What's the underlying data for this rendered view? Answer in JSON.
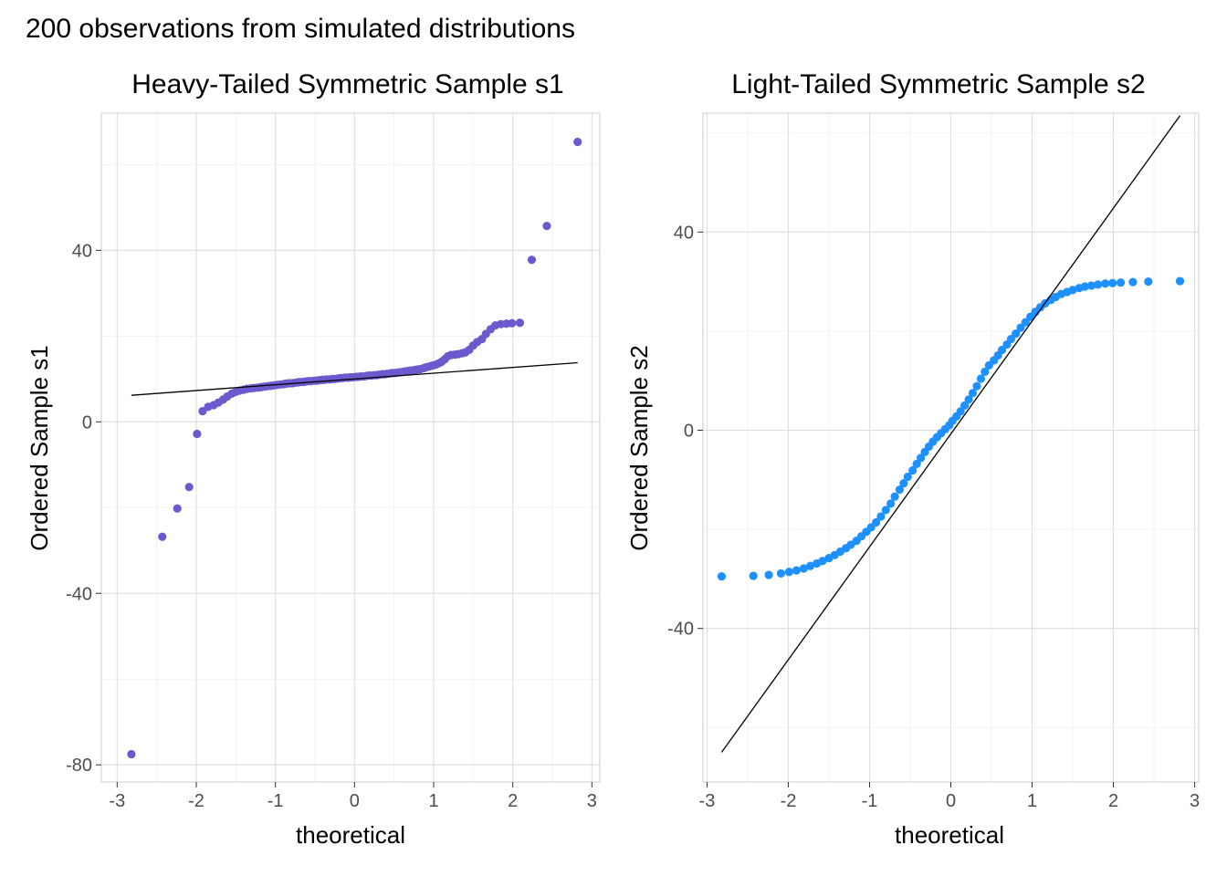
{
  "figure": {
    "title": "200 observations from simulated distributions"
  },
  "chart_data": [
    {
      "type": "scatter",
      "title": "Heavy-Tailed Symmetric Sample s1",
      "xlabel": "theoretical",
      "ylabel": "Ordered Sample s1",
      "xlim": [
        -3.2,
        3.1
      ],
      "ylim": [
        -84,
        72
      ],
      "xticks": [
        -3,
        -2,
        -1,
        0,
        1,
        2,
        3
      ],
      "yticks": [
        -80,
        -40,
        0,
        40
      ],
      "minor_yticks": [
        -60,
        -20,
        20,
        60
      ],
      "grid": true,
      "point_color": "#6a5acd",
      "line_color": "#000000",
      "reference_line": {
        "x": [
          -2.82,
          2.82
        ],
        "y": [
          6.2,
          13.8
        ]
      },
      "points": {
        "x": [
          -2.82,
          -2.43,
          -2.24,
          -2.09,
          -1.99,
          -1.92,
          -1.85,
          -1.78,
          -1.72,
          -1.66,
          -1.61,
          -1.55,
          -1.5,
          -1.45,
          -1.4,
          -1.36,
          -1.31,
          -1.27,
          -1.22,
          -1.18,
          -1.14,
          -1.1,
          -1.06,
          -1.02,
          -0.98,
          -0.94,
          -0.9,
          -0.87,
          -0.83,
          -0.79,
          -0.76,
          -0.72,
          -0.69,
          -0.65,
          -0.62,
          -0.58,
          -0.55,
          -0.51,
          -0.48,
          -0.45,
          -0.41,
          -0.38,
          -0.35,
          -0.31,
          -0.28,
          -0.25,
          -0.21,
          -0.18,
          -0.15,
          -0.12,
          -0.08,
          -0.05,
          -0.02,
          0.02,
          0.05,
          0.08,
          0.12,
          0.15,
          0.18,
          0.21,
          0.25,
          0.28,
          0.31,
          0.35,
          0.38,
          0.41,
          0.45,
          0.48,
          0.51,
          0.55,
          0.58,
          0.62,
          0.65,
          0.69,
          0.72,
          0.76,
          0.79,
          0.83,
          0.87,
          0.9,
          0.94,
          0.98,
          1.02,
          1.06,
          1.1,
          1.14,
          1.18,
          1.22,
          1.27,
          1.31,
          1.36,
          1.4,
          1.45,
          1.5,
          1.55,
          1.61,
          1.66,
          1.72,
          1.78,
          1.85,
          1.92,
          1.99,
          2.09,
          2.24,
          2.43,
          2.82
        ],
        "y": [
          -77.5,
          -26.8,
          -20.2,
          -15.2,
          -2.8,
          2.5,
          3.5,
          3.9,
          4.5,
          5.2,
          5.9,
          6.6,
          7.0,
          7.3,
          7.5,
          7.7,
          7.8,
          7.9,
          8.0,
          8.1,
          8.2,
          8.3,
          8.4,
          8.5,
          8.6,
          8.7,
          8.8,
          8.9,
          9.0,
          9.0,
          9.1,
          9.2,
          9.3,
          9.3,
          9.4,
          9.5,
          9.5,
          9.6,
          9.6,
          9.7,
          9.8,
          9.8,
          9.9,
          9.9,
          10.0,
          10.0,
          10.1,
          10.2,
          10.2,
          10.3,
          10.3,
          10.4,
          10.4,
          10.5,
          10.5,
          10.6,
          10.6,
          10.7,
          10.8,
          10.8,
          10.9,
          10.9,
          11.0,
          11.1,
          11.1,
          11.2,
          11.3,
          11.4,
          11.4,
          11.5,
          11.6,
          11.7,
          11.8,
          11.9,
          12.0,
          12.1,
          12.2,
          12.3,
          12.5,
          12.7,
          12.9,
          13.1,
          13.3,
          13.6,
          14.0,
          14.6,
          15.3,
          15.6,
          15.7,
          15.8,
          16.0,
          16.2,
          16.8,
          17.8,
          18.6,
          19.3,
          20.5,
          21.6,
          22.5,
          22.8,
          22.9,
          23.0,
          23.1,
          37.8,
          45.7,
          65.3
        ]
      }
    },
    {
      "type": "scatter",
      "title": "Light-Tailed Symmetric Sample s2",
      "xlabel": "theoretical",
      "ylabel": "Ordered Sample s2",
      "xlim": [
        -3.05,
        3.05
      ],
      "ylim": [
        -71,
        64
      ],
      "xticks": [
        -3,
        -2,
        -1,
        0,
        1,
        2,
        3
      ],
      "yticks": [
        -40,
        0,
        40
      ],
      "minor_yticks": [
        -60,
        -20,
        20,
        60
      ],
      "grid": true,
      "point_color": "#1e90ff",
      "line_color": "#000000",
      "reference_line": {
        "x": [
          -2.82,
          2.82
        ],
        "y": [
          -65.0,
          63.5
        ]
      },
      "points": {
        "x": [
          -2.82,
          -2.43,
          -2.24,
          -2.09,
          -1.99,
          -1.9,
          -1.81,
          -1.73,
          -1.65,
          -1.58,
          -1.5,
          -1.43,
          -1.36,
          -1.29,
          -1.23,
          -1.16,
          -1.1,
          -1.04,
          -0.98,
          -0.92,
          -0.86,
          -0.8,
          -0.74,
          -0.69,
          -0.63,
          -0.58,
          -0.53,
          -0.47,
          -0.42,
          -0.37,
          -0.32,
          -0.27,
          -0.22,
          -0.17,
          -0.12,
          -0.07,
          -0.02,
          0.02,
          0.07,
          0.12,
          0.17,
          0.22,
          0.27,
          0.32,
          0.37,
          0.42,
          0.47,
          0.53,
          0.58,
          0.63,
          0.69,
          0.74,
          0.8,
          0.86,
          0.92,
          0.98,
          1.04,
          1.1,
          1.16,
          1.23,
          1.29,
          1.36,
          1.43,
          1.5,
          1.58,
          1.65,
          1.73,
          1.81,
          1.9,
          1.99,
          2.09,
          2.24,
          2.43,
          2.82
        ],
        "y": [
          -29.5,
          -29.4,
          -29.2,
          -28.9,
          -28.6,
          -28.3,
          -27.9,
          -27.4,
          -26.9,
          -26.4,
          -25.8,
          -25.2,
          -24.5,
          -23.8,
          -23.1,
          -22.3,
          -21.4,
          -20.5,
          -19.6,
          -18.6,
          -17.4,
          -16.1,
          -14.8,
          -13.4,
          -12.0,
          -10.7,
          -9.4,
          -8.1,
          -6.8,
          -5.6,
          -4.4,
          -3.3,
          -2.3,
          -1.4,
          -0.6,
          0.2,
          1.0,
          1.9,
          2.8,
          3.8,
          5.0,
          6.2,
          7.5,
          8.9,
          10.4,
          11.8,
          13.1,
          14.1,
          15.1,
          16.2,
          17.3,
          18.4,
          19.5,
          20.7,
          21.8,
          22.9,
          23.9,
          24.8,
          25.6,
          26.3,
          26.9,
          27.5,
          27.9,
          28.3,
          28.7,
          29.0,
          29.2,
          29.4,
          29.6,
          29.7,
          29.8,
          29.9,
          30.0,
          30.1
        ]
      }
    }
  ]
}
